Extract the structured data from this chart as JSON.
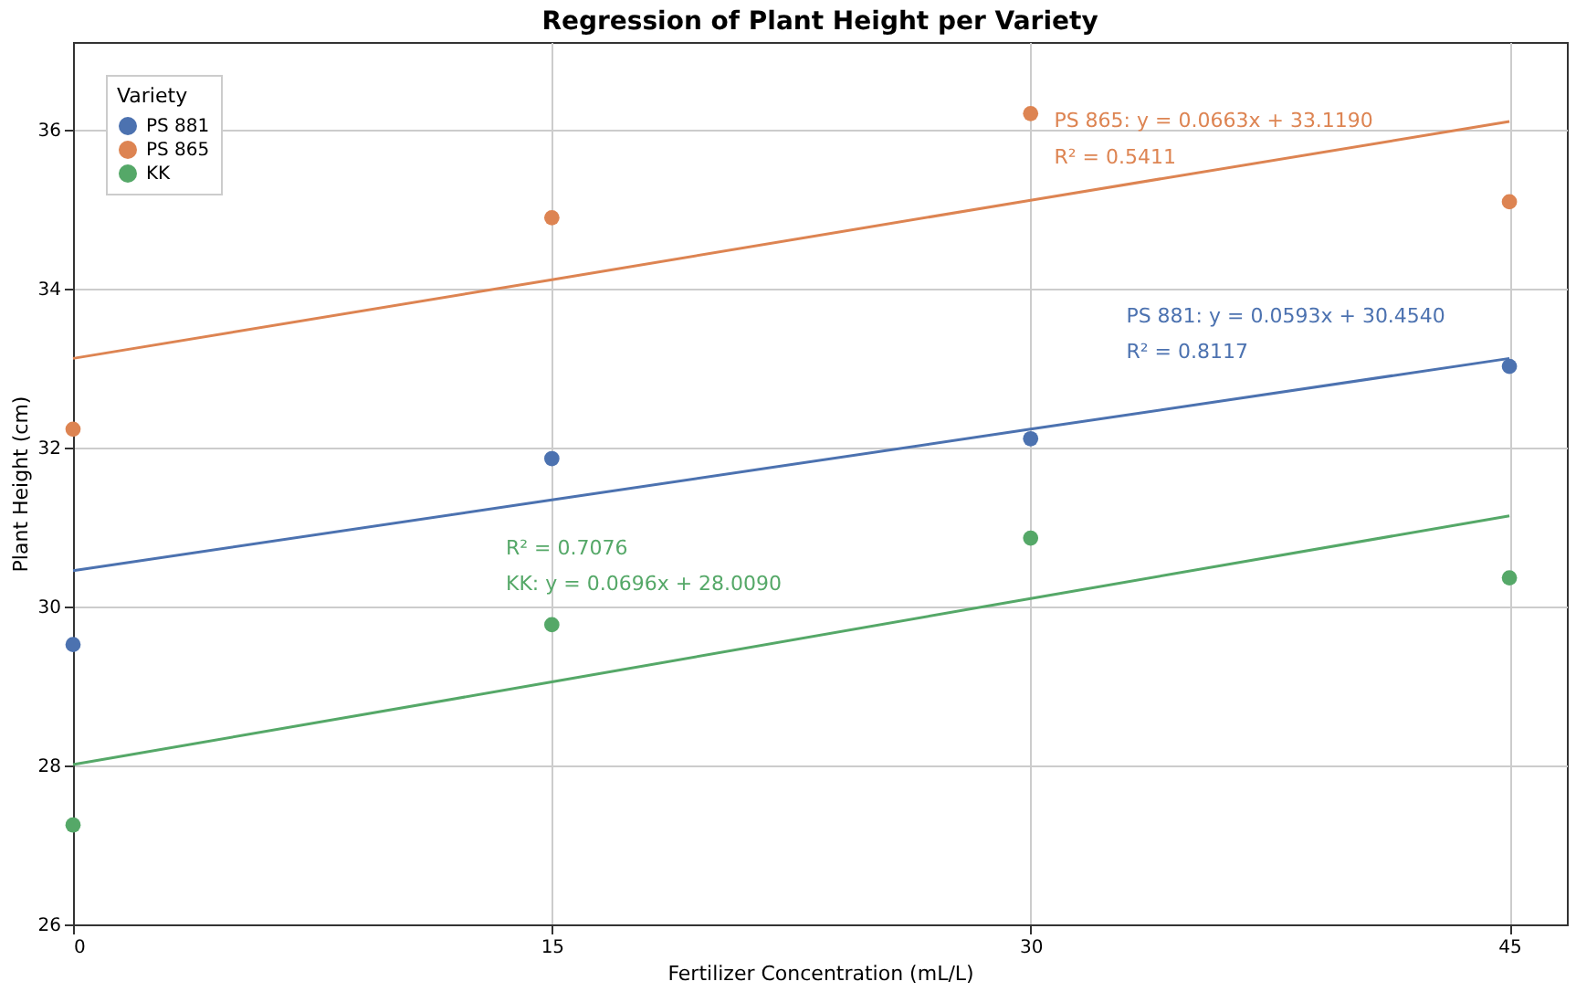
{
  "chart_data": {
    "type": "scatter",
    "title": "Regression of Plant Height per Variety",
    "xlabel": "Fertilizer Concentration (mL/L)",
    "ylabel": "Plant Height (cm)",
    "legend_title": "Variety",
    "x": [
      0,
      15,
      30,
      45
    ],
    "series": [
      {
        "name": "PS 881",
        "color": "#4c72b0",
        "values": [
          29.52,
          31.86,
          32.11,
          33.02
        ]
      },
      {
        "name": "PS 865",
        "color": "#dd8452",
        "values": [
          32.23,
          34.89,
          36.2,
          35.09
        ]
      },
      {
        "name": "KK",
        "color": "#55a868",
        "values": [
          27.25,
          29.77,
          30.86,
          30.36
        ]
      },
      {
        "type": "line",
        "marker": "none",
        "color": "#4c72b0",
        "values": [
          30.45,
          31.34,
          32.23,
          33.12
        ]
      },
      {
        "type": "line",
        "marker": "none",
        "color": "#dd8452",
        "values": [
          33.12,
          34.11,
          35.11,
          36.1
        ]
      },
      {
        "type": "line",
        "marker": "none",
        "color": "#55a868",
        "values": [
          28.01,
          29.05,
          30.1,
          31.14
        ]
      }
    ],
    "annotations": [
      "PS 881: y = 0.0593x + 30.4540",
      "R² = 0.8117",
      "PS 865: y = 0.0663x + 33.1190",
      "R² = 0.5411",
      "KK: y = 0.0696x + 28.0090",
      "R² = 0.7076"
    ],
    "xlim": [
      0,
      46.8
    ],
    "ylim": [
      26,
      37.1
    ],
    "xticks": [
      0,
      15,
      30,
      45
    ],
    "yticks": [
      26,
      28,
      30,
      32,
      34,
      36
    ],
    "grid": true,
    "legend": "top left",
    "marker": "circle"
  }
}
